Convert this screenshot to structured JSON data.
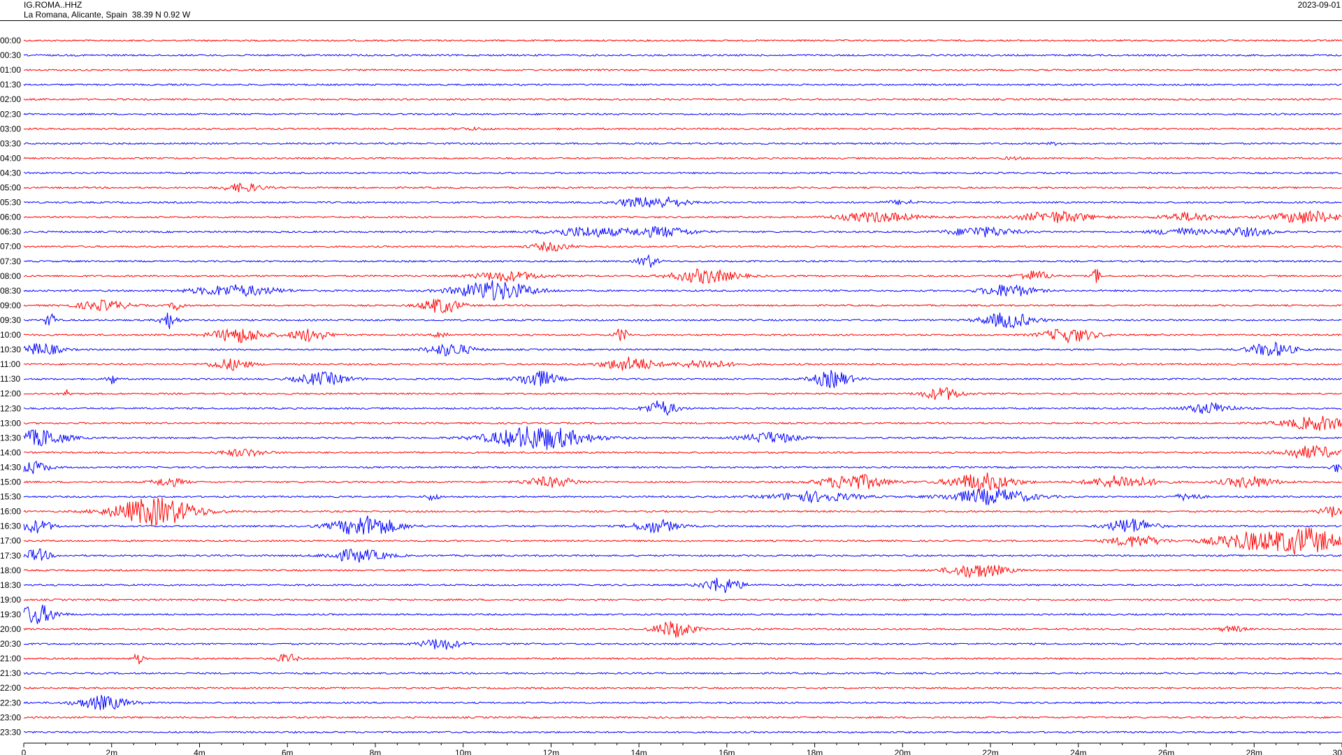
{
  "header": {
    "station": "IG.ROMA..HHZ",
    "location": "La Romana, Alicante, Spain  38.39 N 0.92 W",
    "date": "2023-09-01"
  },
  "chart_data": {
    "type": "line",
    "title": "",
    "xlabel": "",
    "ylabel": "",
    "xlim": [
      0,
      30
    ],
    "x_unit": "minutes",
    "x_ticks": [
      0,
      2,
      4,
      6,
      8,
      10,
      12,
      14,
      16,
      18,
      20,
      22,
      24,
      26,
      28,
      30
    ],
    "x_tick_labels": [
      "0",
      "2m",
      "4m",
      "6m",
      "8m",
      "10m",
      "12m",
      "14m",
      "16m",
      "18m",
      "20m",
      "22m",
      "24m",
      "26m",
      "28m",
      "30"
    ],
    "trace_colors": [
      "#ff0000",
      "#0000ff"
    ],
    "grid": false,
    "rows": [
      {
        "label": "00:00",
        "color": "#ff0000",
        "bursts": []
      },
      {
        "label": "00:30",
        "color": "#0000ff",
        "bursts": []
      },
      {
        "label": "01:00",
        "color": "#ff0000",
        "bursts": []
      },
      {
        "label": "01:30",
        "color": "#0000ff",
        "bursts": []
      },
      {
        "label": "02:00",
        "color": "#ff0000",
        "bursts": []
      },
      {
        "label": "02:30",
        "color": "#0000ff",
        "bursts": []
      },
      {
        "label": "03:00",
        "color": "#ff0000",
        "bursts": [
          [
            10.2,
            0.5,
            1.5
          ]
        ]
      },
      {
        "label": "03:30",
        "color": "#0000ff",
        "bursts": [
          [
            23.5,
            0.3,
            1.5
          ]
        ]
      },
      {
        "label": "04:00",
        "color": "#ff0000",
        "bursts": [
          [
            22.5,
            0.3,
            1.5
          ]
        ]
      },
      {
        "label": "04:30",
        "color": "#0000ff",
        "bursts": []
      },
      {
        "label": "05:00",
        "color": "#ff0000",
        "bursts": [
          [
            5.0,
            0.6,
            6
          ]
        ]
      },
      {
        "label": "05:30",
        "color": "#0000ff",
        "bursts": [
          [
            13.8,
            0.5,
            4
          ],
          [
            14.5,
            0.8,
            8
          ],
          [
            20.0,
            0.5,
            3
          ]
        ]
      },
      {
        "label": "06:00",
        "color": "#ff0000",
        "bursts": [
          [
            19.4,
            1.2,
            7
          ],
          [
            23.5,
            1.1,
            8
          ],
          [
            26.5,
            0.8,
            6
          ],
          [
            29.2,
            1.0,
            9
          ]
        ]
      },
      {
        "label": "06:30",
        "color": "#0000ff",
        "bursts": [
          [
            12.8,
            1.2,
            7
          ],
          [
            14.5,
            1.0,
            7
          ],
          [
            21.8,
            1.0,
            7
          ],
          [
            26.3,
            0.8,
            5
          ],
          [
            27.8,
            0.8,
            6
          ]
        ]
      },
      {
        "label": "07:00",
        "color": "#ff0000",
        "bursts": [
          [
            12.0,
            0.6,
            6
          ]
        ]
      },
      {
        "label": "07:30",
        "color": "#0000ff",
        "bursts": [
          [
            14.2,
            0.3,
            9
          ]
        ]
      },
      {
        "label": "08:00",
        "color": "#ff0000",
        "bursts": [
          [
            11.0,
            1.0,
            7
          ],
          [
            15.5,
            1.0,
            10
          ],
          [
            23.0,
            0.5,
            7
          ],
          [
            24.4,
            0.1,
            14
          ]
        ]
      },
      {
        "label": "08:30",
        "color": "#0000ff",
        "bursts": [
          [
            4.8,
            1.3,
            8
          ],
          [
            10.7,
            1.2,
            14
          ],
          [
            22.4,
            0.8,
            9
          ]
        ]
      },
      {
        "label": "09:00",
        "color": "#ff0000",
        "bursts": [
          [
            1.8,
            0.8,
            7
          ],
          [
            3.5,
            0.2,
            7
          ],
          [
            9.5,
            0.6,
            11
          ]
        ]
      },
      {
        "label": "09:30",
        "color": "#0000ff",
        "bursts": [
          [
            0.6,
            0.15,
            13
          ],
          [
            3.3,
            0.25,
            12
          ],
          [
            22.4,
            0.8,
            11
          ]
        ]
      },
      {
        "label": "10:00",
        "color": "#ff0000",
        "bursts": [
          [
            4.9,
            0.8,
            11
          ],
          [
            6.5,
            0.6,
            9
          ],
          [
            9.5,
            0.2,
            6
          ],
          [
            13.6,
            0.2,
            10
          ],
          [
            23.8,
            0.8,
            10
          ]
        ]
      },
      {
        "label": "10:30",
        "color": "#0000ff",
        "bursts": [
          [
            0.4,
            0.6,
            9
          ],
          [
            9.7,
            0.7,
            9
          ],
          [
            28.4,
            0.7,
            10
          ]
        ]
      },
      {
        "label": "11:00",
        "color": "#ff0000",
        "bursts": [
          [
            4.7,
            0.6,
            8
          ],
          [
            13.8,
            0.8,
            10
          ],
          [
            15.5,
            0.8,
            6
          ]
        ]
      },
      {
        "label": "11:30",
        "color": "#0000ff",
        "bursts": [
          [
            2.0,
            0.15,
            8
          ],
          [
            6.8,
            0.8,
            9
          ],
          [
            11.7,
            0.6,
            12
          ],
          [
            18.4,
            0.6,
            12
          ]
        ]
      },
      {
        "label": "12:00",
        "color": "#ff0000",
        "bursts": [
          [
            1.0,
            0.1,
            6
          ],
          [
            20.9,
            0.6,
            9
          ]
        ]
      },
      {
        "label": "12:30",
        "color": "#0000ff",
        "bursts": [
          [
            14.5,
            0.5,
            11
          ],
          [
            27.0,
            0.7,
            8
          ]
        ]
      },
      {
        "label": "13:00",
        "color": "#ff0000",
        "bursts": [
          [
            29.5,
            1.1,
            10
          ]
        ]
      },
      {
        "label": "13:30",
        "color": "#0000ff",
        "bursts": [
          [
            0.4,
            0.8,
            12
          ],
          [
            11.7,
            1.5,
            17
          ],
          [
            17.0,
            0.8,
            8
          ]
        ]
      },
      {
        "label": "14:00",
        "color": "#ff0000",
        "bursts": [
          [
            5.0,
            0.7,
            5
          ],
          [
            29.3,
            0.9,
            9
          ]
        ]
      },
      {
        "label": "14:30",
        "color": "#0000ff",
        "bursts": [
          [
            0.2,
            0.5,
            9
          ],
          [
            29.9,
            0.2,
            7
          ]
        ]
      },
      {
        "label": "15:00",
        "color": "#ff0000",
        "bursts": [
          [
            3.3,
            0.5,
            6
          ],
          [
            12.0,
            0.8,
            7
          ],
          [
            18.9,
            1.0,
            11
          ],
          [
            21.8,
            1.0,
            13
          ],
          [
            25.0,
            1.0,
            9
          ],
          [
            27.9,
            0.8,
            8
          ]
        ]
      },
      {
        "label": "15:30",
        "color": "#0000ff",
        "bursts": [
          [
            9.3,
            0.2,
            5
          ],
          [
            18.0,
            1.3,
            7
          ],
          [
            22.0,
            1.3,
            11
          ],
          [
            26.5,
            0.4,
            5
          ]
        ]
      },
      {
        "label": "16:00",
        "color": "#ff0000",
        "bursts": [
          [
            3.0,
            1.3,
            20
          ],
          [
            29.8,
            0.4,
            8
          ]
        ]
      },
      {
        "label": "16:30",
        "color": "#0000ff",
        "bursts": [
          [
            0.3,
            0.5,
            9
          ],
          [
            7.8,
            1.0,
            15
          ],
          [
            14.4,
            0.7,
            9
          ],
          [
            25.2,
            0.7,
            11
          ]
        ]
      },
      {
        "label": "17:00",
        "color": "#ff0000",
        "bursts": [
          [
            25.3,
            0.8,
            8
          ],
          [
            27.9,
            1.2,
            12
          ],
          [
            29.2,
            1.0,
            18
          ]
        ]
      },
      {
        "label": "17:30",
        "color": "#0000ff",
        "bursts": [
          [
            0.3,
            0.4,
            9
          ],
          [
            7.6,
            0.9,
            9
          ]
        ]
      },
      {
        "label": "18:00",
        "color": "#ff0000",
        "bursts": [
          [
            21.7,
            0.9,
            10
          ]
        ]
      },
      {
        "label": "18:30",
        "color": "#0000ff",
        "bursts": [
          [
            15.9,
            0.6,
            11
          ]
        ]
      },
      {
        "label": "19:00",
        "color": "#ff0000",
        "bursts": []
      },
      {
        "label": "19:30",
        "color": "#0000ff",
        "bursts": [
          [
            0.3,
            0.6,
            14
          ]
        ]
      },
      {
        "label": "20:00",
        "color": "#ff0000",
        "bursts": [
          [
            14.8,
            0.6,
            12
          ],
          [
            27.5,
            0.4,
            4
          ]
        ]
      },
      {
        "label": "20:30",
        "color": "#0000ff",
        "bursts": [
          [
            9.5,
            0.6,
            8
          ]
        ]
      },
      {
        "label": "21:00",
        "color": "#ff0000",
        "bursts": [
          [
            2.6,
            0.15,
            8
          ],
          [
            6.0,
            0.3,
            7
          ]
        ]
      },
      {
        "label": "21:30",
        "color": "#0000ff",
        "bursts": []
      },
      {
        "label": "22:00",
        "color": "#ff0000",
        "bursts": []
      },
      {
        "label": "22:30",
        "color": "#0000ff",
        "bursts": [
          [
            1.8,
            0.8,
            10
          ]
        ]
      },
      {
        "label": "23:00",
        "color": "#ff0000",
        "bursts": []
      },
      {
        "label": "23:30",
        "color": "#0000ff",
        "bursts": []
      }
    ]
  }
}
